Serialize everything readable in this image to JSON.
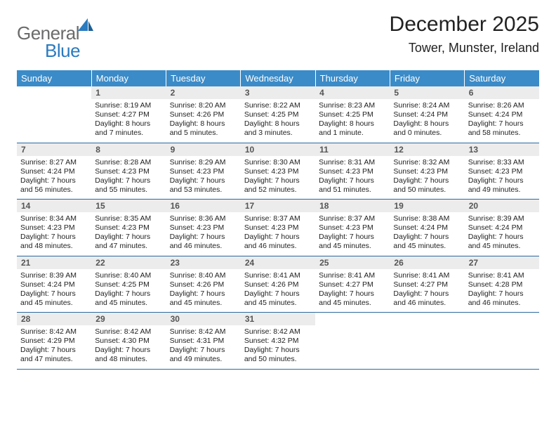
{
  "logo": {
    "word1": "General",
    "word2": "Blue",
    "gray": "#6b6b6b",
    "blue": "#2a7bbf"
  },
  "title": "December 2025",
  "subtitle": "Tower, Munster, Ireland",
  "header_bg": "#3b8bc8",
  "daynum_bg": "#ececec",
  "rule_color": "#2a6aa0",
  "days_of_week": [
    "Sunday",
    "Monday",
    "Tuesday",
    "Wednesday",
    "Thursday",
    "Friday",
    "Saturday"
  ],
  "font_sizes": {
    "title": 30,
    "subtitle": 18,
    "dow": 13,
    "daynum": 12,
    "details": 10.5,
    "logo": 26
  },
  "weeks": [
    [
      {
        "empty": true
      },
      {
        "n": "1",
        "sunrise": "Sunrise: 8:19 AM",
        "sunset": "Sunset: 4:27 PM",
        "daylight": "Daylight: 8 hours and 7 minutes."
      },
      {
        "n": "2",
        "sunrise": "Sunrise: 8:20 AM",
        "sunset": "Sunset: 4:26 PM",
        "daylight": "Daylight: 8 hours and 5 minutes."
      },
      {
        "n": "3",
        "sunrise": "Sunrise: 8:22 AM",
        "sunset": "Sunset: 4:25 PM",
        "daylight": "Daylight: 8 hours and 3 minutes."
      },
      {
        "n": "4",
        "sunrise": "Sunrise: 8:23 AM",
        "sunset": "Sunset: 4:25 PM",
        "daylight": "Daylight: 8 hours and 1 minute."
      },
      {
        "n": "5",
        "sunrise": "Sunrise: 8:24 AM",
        "sunset": "Sunset: 4:24 PM",
        "daylight": "Daylight: 8 hours and 0 minutes."
      },
      {
        "n": "6",
        "sunrise": "Sunrise: 8:26 AM",
        "sunset": "Sunset: 4:24 PM",
        "daylight": "Daylight: 7 hours and 58 minutes."
      }
    ],
    [
      {
        "n": "7",
        "sunrise": "Sunrise: 8:27 AM",
        "sunset": "Sunset: 4:24 PM",
        "daylight": "Daylight: 7 hours and 56 minutes."
      },
      {
        "n": "8",
        "sunrise": "Sunrise: 8:28 AM",
        "sunset": "Sunset: 4:23 PM",
        "daylight": "Daylight: 7 hours and 55 minutes."
      },
      {
        "n": "9",
        "sunrise": "Sunrise: 8:29 AM",
        "sunset": "Sunset: 4:23 PM",
        "daylight": "Daylight: 7 hours and 53 minutes."
      },
      {
        "n": "10",
        "sunrise": "Sunrise: 8:30 AM",
        "sunset": "Sunset: 4:23 PM",
        "daylight": "Daylight: 7 hours and 52 minutes."
      },
      {
        "n": "11",
        "sunrise": "Sunrise: 8:31 AM",
        "sunset": "Sunset: 4:23 PM",
        "daylight": "Daylight: 7 hours and 51 minutes."
      },
      {
        "n": "12",
        "sunrise": "Sunrise: 8:32 AM",
        "sunset": "Sunset: 4:23 PM",
        "daylight": "Daylight: 7 hours and 50 minutes."
      },
      {
        "n": "13",
        "sunrise": "Sunrise: 8:33 AM",
        "sunset": "Sunset: 4:23 PM",
        "daylight": "Daylight: 7 hours and 49 minutes."
      }
    ],
    [
      {
        "n": "14",
        "sunrise": "Sunrise: 8:34 AM",
        "sunset": "Sunset: 4:23 PM",
        "daylight": "Daylight: 7 hours and 48 minutes."
      },
      {
        "n": "15",
        "sunrise": "Sunrise: 8:35 AM",
        "sunset": "Sunset: 4:23 PM",
        "daylight": "Daylight: 7 hours and 47 minutes."
      },
      {
        "n": "16",
        "sunrise": "Sunrise: 8:36 AM",
        "sunset": "Sunset: 4:23 PM",
        "daylight": "Daylight: 7 hours and 46 minutes."
      },
      {
        "n": "17",
        "sunrise": "Sunrise: 8:37 AM",
        "sunset": "Sunset: 4:23 PM",
        "daylight": "Daylight: 7 hours and 46 minutes."
      },
      {
        "n": "18",
        "sunrise": "Sunrise: 8:37 AM",
        "sunset": "Sunset: 4:23 PM",
        "daylight": "Daylight: 7 hours and 45 minutes."
      },
      {
        "n": "19",
        "sunrise": "Sunrise: 8:38 AM",
        "sunset": "Sunset: 4:24 PM",
        "daylight": "Daylight: 7 hours and 45 minutes."
      },
      {
        "n": "20",
        "sunrise": "Sunrise: 8:39 AM",
        "sunset": "Sunset: 4:24 PM",
        "daylight": "Daylight: 7 hours and 45 minutes."
      }
    ],
    [
      {
        "n": "21",
        "sunrise": "Sunrise: 8:39 AM",
        "sunset": "Sunset: 4:24 PM",
        "daylight": "Daylight: 7 hours and 45 minutes."
      },
      {
        "n": "22",
        "sunrise": "Sunrise: 8:40 AM",
        "sunset": "Sunset: 4:25 PM",
        "daylight": "Daylight: 7 hours and 45 minutes."
      },
      {
        "n": "23",
        "sunrise": "Sunrise: 8:40 AM",
        "sunset": "Sunset: 4:26 PM",
        "daylight": "Daylight: 7 hours and 45 minutes."
      },
      {
        "n": "24",
        "sunrise": "Sunrise: 8:41 AM",
        "sunset": "Sunset: 4:26 PM",
        "daylight": "Daylight: 7 hours and 45 minutes."
      },
      {
        "n": "25",
        "sunrise": "Sunrise: 8:41 AM",
        "sunset": "Sunset: 4:27 PM",
        "daylight": "Daylight: 7 hours and 45 minutes."
      },
      {
        "n": "26",
        "sunrise": "Sunrise: 8:41 AM",
        "sunset": "Sunset: 4:27 PM",
        "daylight": "Daylight: 7 hours and 46 minutes."
      },
      {
        "n": "27",
        "sunrise": "Sunrise: 8:41 AM",
        "sunset": "Sunset: 4:28 PM",
        "daylight": "Daylight: 7 hours and 46 minutes."
      }
    ],
    [
      {
        "n": "28",
        "sunrise": "Sunrise: 8:42 AM",
        "sunset": "Sunset: 4:29 PM",
        "daylight": "Daylight: 7 hours and 47 minutes."
      },
      {
        "n": "29",
        "sunrise": "Sunrise: 8:42 AM",
        "sunset": "Sunset: 4:30 PM",
        "daylight": "Daylight: 7 hours and 48 minutes."
      },
      {
        "n": "30",
        "sunrise": "Sunrise: 8:42 AM",
        "sunset": "Sunset: 4:31 PM",
        "daylight": "Daylight: 7 hours and 49 minutes."
      },
      {
        "n": "31",
        "sunrise": "Sunrise: 8:42 AM",
        "sunset": "Sunset: 4:32 PM",
        "daylight": "Daylight: 7 hours and 50 minutes."
      },
      {
        "empty": true
      },
      {
        "empty": true
      },
      {
        "empty": true
      }
    ]
  ]
}
